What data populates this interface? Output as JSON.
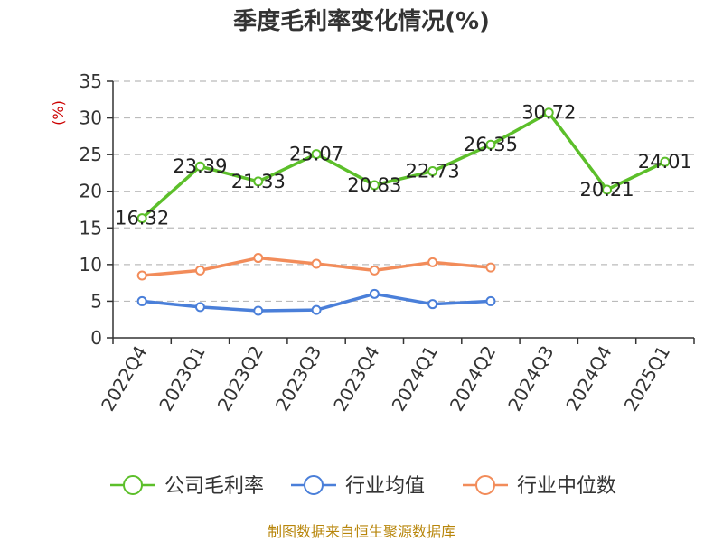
{
  "chart_data": {
    "type": "line",
    "title": "季度毛利率变化情况(%)",
    "ylabel": "(%)",
    "xlabel": "",
    "ylim": [
      0,
      35
    ],
    "yticks": [
      0,
      5,
      10,
      15,
      20,
      25,
      30,
      35
    ],
    "grid": true,
    "legend_position": "bottom",
    "categories": [
      "2022Q4",
      "2023Q1",
      "2023Q2",
      "2023Q3",
      "2023Q4",
      "2024Q1",
      "2024Q2",
      "2024Q3",
      "2024Q4",
      "2025Q1"
    ],
    "series": [
      {
        "name": "公司毛利率",
        "color": "#5cbf2a",
        "show_labels": true,
        "values": [
          16.32,
          23.39,
          21.33,
          25.07,
          20.83,
          22.73,
          26.35,
          30.72,
          20.21,
          24.01
        ]
      },
      {
        "name": "行业均值",
        "color": "#4a7fd9",
        "show_labels": false,
        "values": [
          5.0,
          4.2,
          3.7,
          3.8,
          6.0,
          4.6,
          5.0,
          null,
          null,
          null
        ]
      },
      {
        "name": "行业中位数",
        "color": "#f28c5a",
        "show_labels": false,
        "values": [
          8.5,
          9.2,
          10.9,
          10.1,
          9.2,
          10.3,
          9.6,
          null,
          null,
          null
        ]
      }
    ]
  },
  "footer": {
    "source": "制图数据来自恒生聚源数据库"
  }
}
